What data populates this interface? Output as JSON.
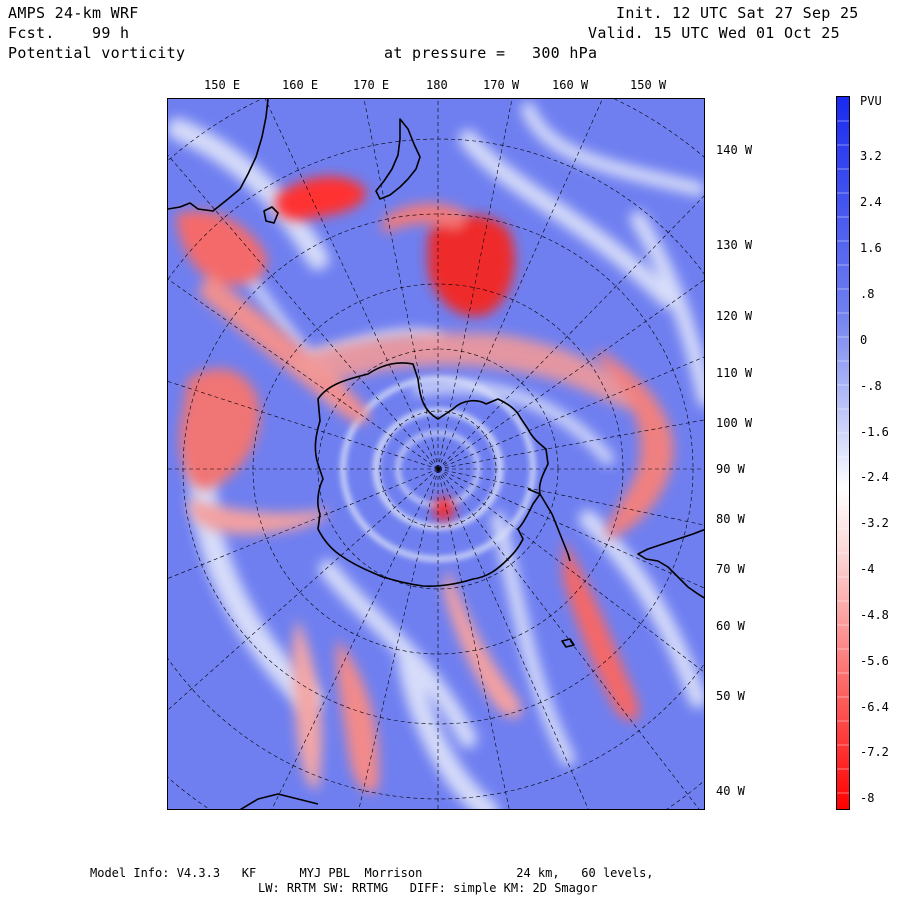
{
  "header": {
    "model": "AMPS 24-km WRF",
    "forecast_label": "Fcst.",
    "forecast_hours": "99 h",
    "field": "Potential vorticity",
    "pressure_label": "at pressure =",
    "pressure_value": "300 hPa",
    "init": "Init. 12 UTC Sat 27 Sep 25",
    "valid": "Valid. 15 UTC Wed 01 Oct 25"
  },
  "map": {
    "top_labels": [
      "150 E",
      "160 E",
      "170 E",
      "180",
      "170 W",
      "160 W",
      "150 W"
    ],
    "right_labels": [
      "140 W",
      "130 W",
      "120 W",
      "110 W",
      "100 W",
      "90 W",
      "80 W",
      "70 W",
      "60 W",
      "50 W",
      "40 W"
    ],
    "colors": {
      "positive": "#3a3ae8",
      "negative": "#ff1010",
      "background": "#6f7ff0"
    }
  },
  "colorbar": {
    "unit": "PVU",
    "ticks": [
      "3.2",
      "2.4",
      "1.6",
      ".8",
      "0",
      "-.8",
      "-1.6",
      "-2.4",
      "-3.2",
      "-4",
      "-4.8",
      "-5.6",
      "-6.4",
      "-7.2",
      "-8"
    ]
  },
  "footer": {
    "line1": "Model Info: V4.3.3   KF      MYJ PBL  Morrison             24 km,   60 levels,",
    "line2": "LW: RRTM SW: RRTMG   DIFF: simple KM: 2D Smagor"
  }
}
